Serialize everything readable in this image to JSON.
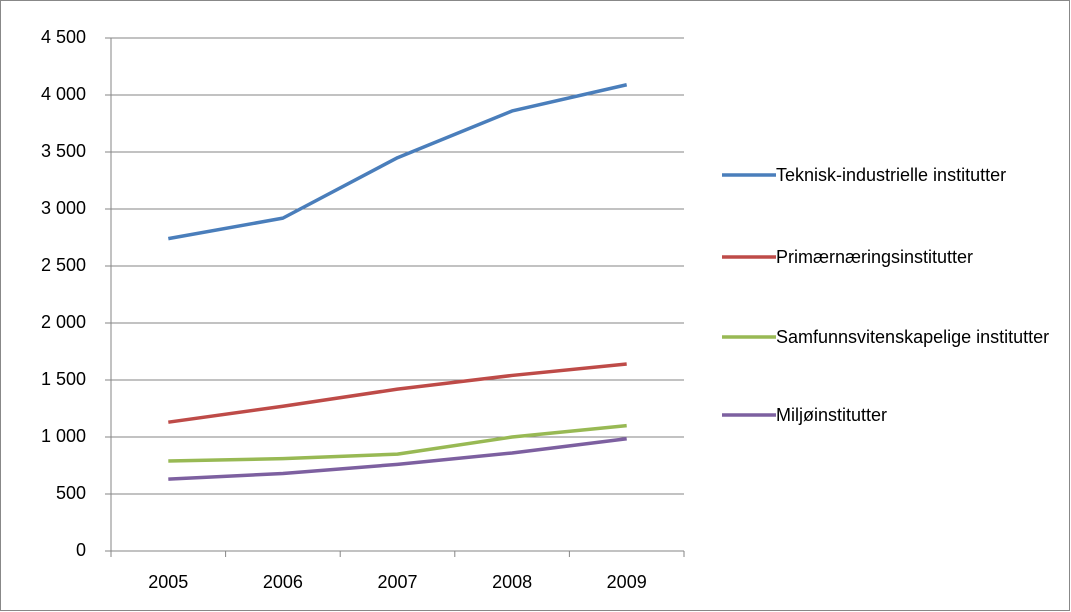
{
  "chart_data": {
    "type": "line",
    "categories": [
      "2005",
      "2006",
      "2007",
      "2008",
      "2009"
    ],
    "series": [
      {
        "name": "Teknisk-industrielle institutter",
        "color": "#4a7ebb",
        "values": [
          2740,
          2920,
          3450,
          3860,
          4090
        ]
      },
      {
        "name": "Primærnæringsinstitutter",
        "color": "#be4b48",
        "values": [
          1130,
          1270,
          1420,
          1540,
          1640
        ]
      },
      {
        "name": "Samfunnsvitenskapelige institutter",
        "color": "#98b954",
        "values": [
          790,
          810,
          850,
          1000,
          1100
        ]
      },
      {
        "name": "Miljøinstitutter",
        "color": "#7d60a0",
        "values": [
          630,
          680,
          760,
          860,
          985
        ]
      }
    ],
    "ylim": [
      0,
      4500
    ],
    "yticks": [
      0,
      500,
      {
        "value": 1000,
        "label": "1 000"
      },
      {
        "value": 1500,
        "label": "1 500"
      },
      {
        "value": 2000,
        "label": "2 000"
      },
      {
        "value": 2500,
        "label": "2 500"
      },
      {
        "value": 3000,
        "label": "3 000"
      },
      {
        "value": 3500,
        "label": "3 500"
      },
      {
        "value": 4000,
        "label": "4 000"
      },
      {
        "value": 4500,
        "label": "4 500"
      }
    ],
    "grid": true,
    "legend": "right"
  }
}
